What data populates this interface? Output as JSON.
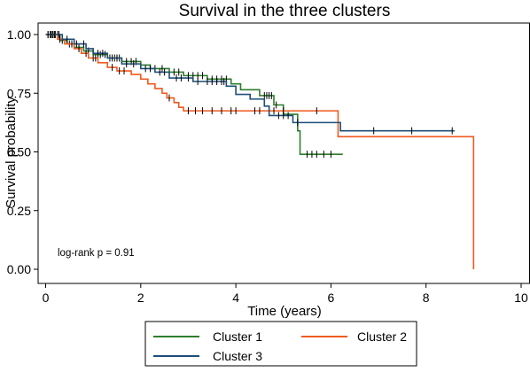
{
  "chart_data": {
    "type": "line",
    "title": "Survival in the three clusters",
    "xlabel": "Time (years)",
    "ylabel": "Survival probability",
    "xlim": [
      0,
      10
    ],
    "ylim": [
      0,
      1
    ],
    "xticks": [
      0,
      2,
      4,
      6,
      8,
      10
    ],
    "xtick_labels": [
      "0",
      "2",
      "4",
      "6",
      "8",
      "10"
    ],
    "yticks": [
      0,
      0.25,
      0.5,
      0.75,
      1
    ],
    "ytick_labels": [
      "0.00",
      "0.25",
      "0.50",
      "0.75",
      "1.00"
    ],
    "grid": false,
    "legend_position": "bottom",
    "annotation": "log-rank p = 0.91",
    "series": [
      {
        "name": "Cluster 1",
        "color": "#2e7d2e",
        "steps": [
          [
            0,
            1.0
          ],
          [
            0.3,
            0.975
          ],
          [
            0.45,
            0.96
          ],
          [
            0.6,
            0.945
          ],
          [
            0.8,
            0.93
          ],
          [
            1.0,
            0.915
          ],
          [
            1.3,
            0.9
          ],
          [
            1.6,
            0.885
          ],
          [
            2.0,
            0.87
          ],
          [
            2.2,
            0.855
          ],
          [
            2.6,
            0.84
          ],
          [
            2.9,
            0.825
          ],
          [
            3.4,
            0.81
          ],
          [
            3.9,
            0.79
          ],
          [
            4.1,
            0.765
          ],
          [
            4.5,
            0.74
          ],
          [
            4.8,
            0.7
          ],
          [
            5.0,
            0.66
          ],
          [
            5.3,
            0.59
          ],
          [
            5.35,
            0.49
          ],
          [
            6.25,
            0.49
          ]
        ],
        "censor_times": [
          0.05,
          0.1,
          0.15,
          0.2,
          0.25,
          0.35,
          0.5,
          0.7,
          0.9,
          1.1,
          1.15,
          1.25,
          1.35,
          1.45,
          1.5,
          1.55,
          1.7,
          1.8,
          1.9,
          2.3,
          2.45,
          2.7,
          2.8,
          3.0,
          3.1,
          3.2,
          3.3,
          3.5,
          3.6,
          3.7,
          3.8,
          4.6,
          4.65,
          4.7,
          4.75,
          4.85,
          5.5,
          5.6,
          5.7,
          5.85,
          6.0
        ]
      },
      {
        "name": "Cluster 2",
        "color": "#f05a1e",
        "steps": [
          [
            0,
            1.0
          ],
          [
            0.25,
            0.98
          ],
          [
            0.4,
            0.96
          ],
          [
            0.6,
            0.94
          ],
          [
            0.75,
            0.92
          ],
          [
            0.9,
            0.9
          ],
          [
            1.1,
            0.88
          ],
          [
            1.3,
            0.86
          ],
          [
            1.5,
            0.845
          ],
          [
            1.8,
            0.83
          ],
          [
            2.0,
            0.81
          ],
          [
            2.15,
            0.79
          ],
          [
            2.3,
            0.77
          ],
          [
            2.45,
            0.75
          ],
          [
            2.55,
            0.73
          ],
          [
            2.7,
            0.71
          ],
          [
            2.8,
            0.69
          ],
          [
            2.9,
            0.675
          ],
          [
            6.15,
            0.675
          ],
          [
            6.15,
            0.565
          ],
          [
            9.0,
            0.565
          ],
          [
            9.0,
            0.0
          ]
        ],
        "censor_times": [
          0.1,
          0.2,
          0.3,
          0.55,
          0.7,
          0.85,
          1.0,
          1.05,
          1.4,
          1.55,
          1.65,
          2.6,
          3.0,
          3.15,
          3.3,
          3.5,
          3.7,
          3.9,
          4.0,
          4.4,
          4.5,
          4.7,
          4.8,
          5.0,
          5.7
        ]
      },
      {
        "name": "Cluster 3",
        "color": "#1f4e79",
        "steps": [
          [
            0,
            1.0
          ],
          [
            0.35,
            0.98
          ],
          [
            0.6,
            0.96
          ],
          [
            0.85,
            0.94
          ],
          [
            1.0,
            0.92
          ],
          [
            1.3,
            0.9
          ],
          [
            1.6,
            0.875
          ],
          [
            2.0,
            0.855
          ],
          [
            2.3,
            0.84
          ],
          [
            2.6,
            0.815
          ],
          [
            3.1,
            0.8
          ],
          [
            3.8,
            0.78
          ],
          [
            4.0,
            0.745
          ],
          [
            4.3,
            0.725
          ],
          [
            4.6,
            0.695
          ],
          [
            4.7,
            0.655
          ],
          [
            5.2,
            0.625
          ],
          [
            5.5,
            0.625
          ],
          [
            6.2,
            0.59
          ],
          [
            8.6,
            0.59
          ]
        ],
        "censor_times": [
          0.05,
          0.12,
          0.18,
          0.28,
          0.45,
          0.65,
          0.8,
          1.1,
          1.2,
          1.4,
          1.5,
          1.7,
          1.85,
          2.1,
          2.2,
          2.4,
          2.5,
          2.75,
          2.85,
          3.0,
          3.2,
          3.4,
          3.5,
          3.6,
          3.7,
          3.75,
          4.9,
          5.0,
          5.1,
          5.3,
          6.9,
          7.7,
          8.55
        ]
      }
    ]
  }
}
